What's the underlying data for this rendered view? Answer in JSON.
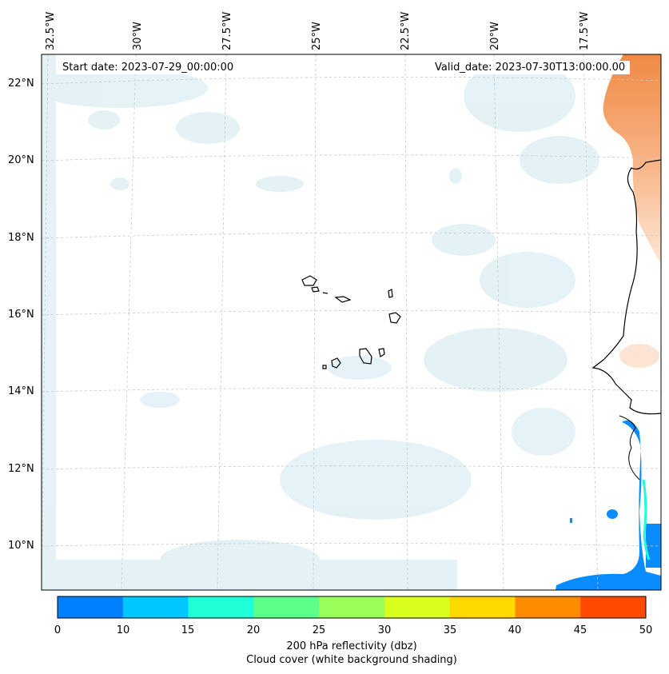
{
  "map": {
    "start_date": "Start date: 2023-07-29_00:00:00",
    "valid_date": "Valid_date: 2023-07-30T13:00:00.00",
    "lon_labels": [
      "32.5°W",
      "30°W",
      "27.5°W",
      "25°W",
      "22.5°W",
      "20°W",
      "17.5°W"
    ],
    "lat_labels": [
      "22°N",
      "20°N",
      "18°N",
      "16°N",
      "14°N",
      "12°N",
      "10°N"
    ]
  },
  "colorbar": {
    "ticks": [
      "0",
      "10",
      "15",
      "20",
      "25",
      "30",
      "35",
      "40",
      "45",
      "50"
    ],
    "colors": [
      "#0080ff",
      "#00c8ff",
      "#1effd8",
      "#5cff8a",
      "#9aff5a",
      "#d8ff1e",
      "#ffd800",
      "#ff8c00",
      "#ff4a00"
    ],
    "label": "200 hPa reflectivity (dbz)",
    "sublabel": "Cloud cover (white background shading)"
  },
  "colors": {
    "land_orange": "#f7a56a",
    "cloud": "#cfe8f0",
    "reflectivity_low": "#0a8cff"
  }
}
